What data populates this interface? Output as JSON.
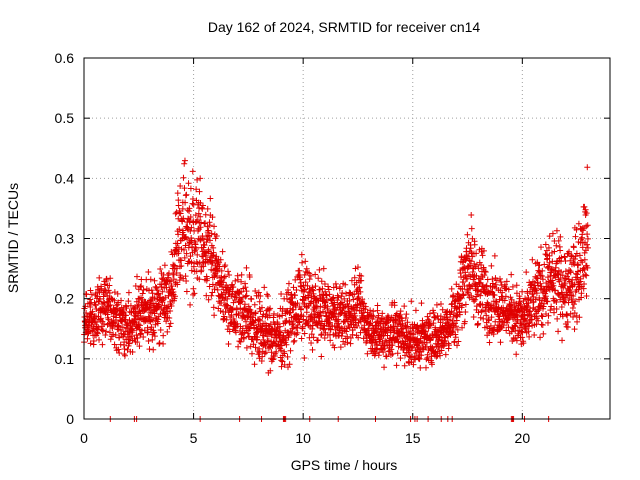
{
  "chart_data": {
    "type": "scatter",
    "title": "Day 162 of 2024, SRMTID for receiver cn14",
    "xlabel": "GPS time / hours",
    "ylabel": "SRMTID / TECUs",
    "xlim": [
      0,
      24
    ],
    "ylim": [
      0,
      0.6
    ],
    "xticks": [
      0,
      5,
      10,
      15,
      20
    ],
    "yticks": [
      0,
      0.1,
      0.2,
      0.3,
      0.4,
      0.5,
      0.6
    ],
    "xtick_labels": [
      "0",
      "5",
      "10",
      "15",
      "20"
    ],
    "ytick_labels": [
      "0",
      "0.1",
      "0.2",
      "0.3",
      "0.4",
      "0.5",
      "0.6"
    ],
    "grid": true,
    "marker": "+",
    "marker_color": "#e00000",
    "series": [
      {
        "name": "SRMTID",
        "profile_hours": [
          0,
          0.5,
          1,
          1.5,
          2,
          2.5,
          3,
          3.5,
          4,
          4.5,
          5,
          5.5,
          6,
          6.5,
          7,
          7.5,
          8,
          8.5,
          9,
          9.5,
          10,
          10.5,
          11,
          11.5,
          12,
          12.5,
          13,
          13.5,
          14,
          14.5,
          15,
          15.5,
          16,
          16.5,
          17,
          17.5,
          18,
          18.5,
          19,
          19.5,
          20,
          20.5,
          21,
          21.5,
          22,
          22.5,
          23
        ],
        "profile_center": [
          0.16,
          0.17,
          0.2,
          0.16,
          0.15,
          0.17,
          0.18,
          0.19,
          0.22,
          0.33,
          0.3,
          0.3,
          0.25,
          0.2,
          0.19,
          0.17,
          0.15,
          0.14,
          0.14,
          0.17,
          0.2,
          0.18,
          0.18,
          0.17,
          0.17,
          0.19,
          0.15,
          0.14,
          0.15,
          0.14,
          0.13,
          0.13,
          0.14,
          0.15,
          0.18,
          0.26,
          0.22,
          0.2,
          0.19,
          0.18,
          0.16,
          0.19,
          0.22,
          0.23,
          0.22,
          0.24,
          0.3
        ],
        "profile_spread": [
          0.06,
          0.05,
          0.06,
          0.05,
          0.05,
          0.06,
          0.06,
          0.07,
          0.07,
          0.12,
          0.12,
          0.1,
          0.08,
          0.07,
          0.07,
          0.07,
          0.07,
          0.06,
          0.06,
          0.07,
          0.08,
          0.07,
          0.06,
          0.06,
          0.06,
          0.06,
          0.05,
          0.05,
          0.06,
          0.06,
          0.05,
          0.05,
          0.05,
          0.05,
          0.06,
          0.09,
          0.08,
          0.07,
          0.06,
          0.06,
          0.06,
          0.07,
          0.08,
          0.08,
          0.08,
          0.09,
          0.12
        ],
        "points_per_hour": 130,
        "zero_hours": [
          1.2,
          2.3,
          2.4,
          5.3,
          7.1,
          8.1,
          9.1,
          9.15,
          9.2,
          10.3,
          11.6,
          13.3,
          14.9,
          15.1,
          15.2,
          15.7,
          16.3,
          16.6,
          16.8,
          19.5,
          19.55,
          19.6,
          20.1,
          21.2
        ]
      }
    ]
  }
}
